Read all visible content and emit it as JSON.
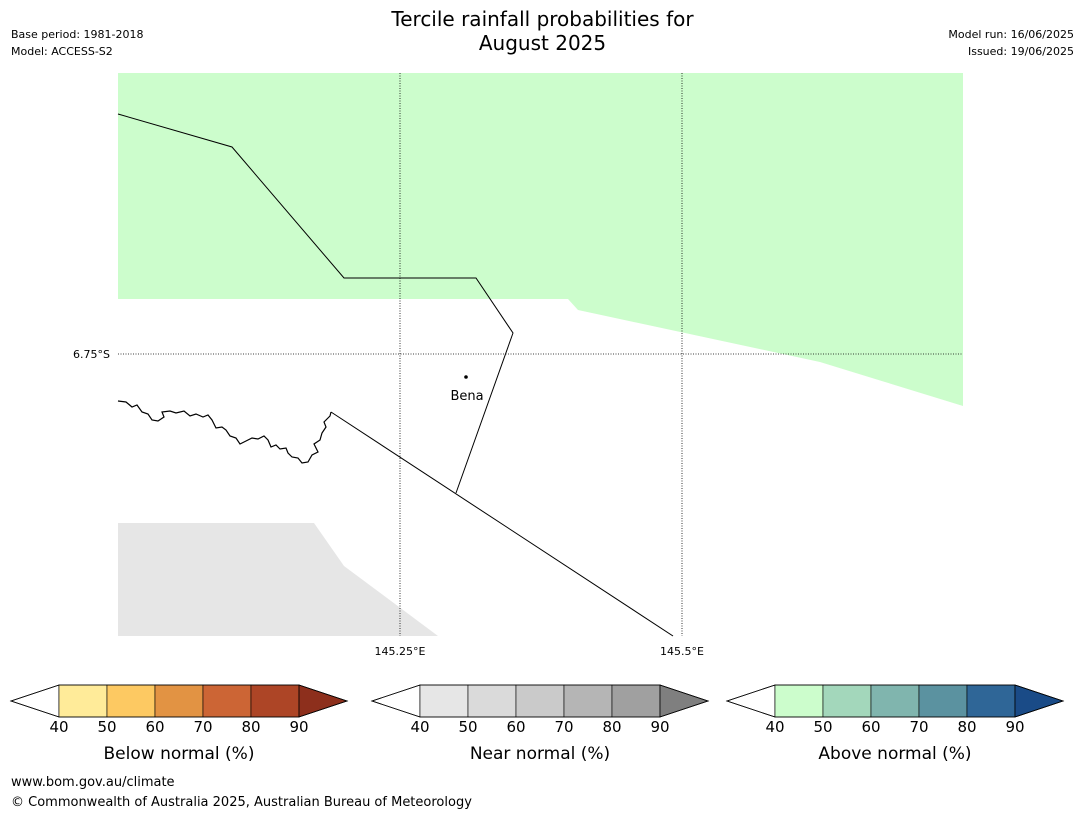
{
  "title": {
    "line1": "Tercile rainfall probabilities for",
    "line2": "August 2025"
  },
  "info_left": {
    "base_period": "Base period: 1981-2018",
    "model": "Model: ACCESS-S2"
  },
  "info_right": {
    "model_run": "Model run: 16/06/2025",
    "issued": "Issued: 19/06/2025"
  },
  "map": {
    "lat_labels": [
      "6.75°S"
    ],
    "lon_labels": [
      "145.25°E",
      "145.5°E"
    ],
    "place": {
      "name": "Bena"
    },
    "colors": {
      "above_normal_fill": "#ccfdcc",
      "near_normal_fill": "#e6e6e6",
      "border_line": "#000000",
      "grid_line": "#000000"
    }
  },
  "colorbars": [
    {
      "label": "Below normal (%)",
      "ticks": [
        "40",
        "50",
        "60",
        "70",
        "80",
        "90"
      ],
      "colors": [
        "#ffeb99",
        "#fdc962",
        "#e29343",
        "#cc6535",
        "#ad4526",
        "#8d2f1c"
      ]
    },
    {
      "label": "Near normal (%)",
      "ticks": [
        "40",
        "50",
        "60",
        "70",
        "80",
        "90"
      ],
      "colors": [
        "#e6e6e6",
        "#dadada",
        "#cacaca",
        "#b5b5b5",
        "#a0a0a0",
        "#7f7f7f"
      ]
    },
    {
      "label": "Above normal (%)",
      "ticks": [
        "40",
        "50",
        "60",
        "70",
        "80",
        "90"
      ],
      "colors": [
        "#ccfdcc",
        "#a3d7bb",
        "#80b5ae",
        "#5b92a0",
        "#2f6697",
        "#1a4b87"
      ]
    }
  ],
  "footer": {
    "url": "www.bom.gov.au/climate",
    "copyright": "© Commonwealth of Australia 2025, Australian Bureau of Meteorology"
  }
}
